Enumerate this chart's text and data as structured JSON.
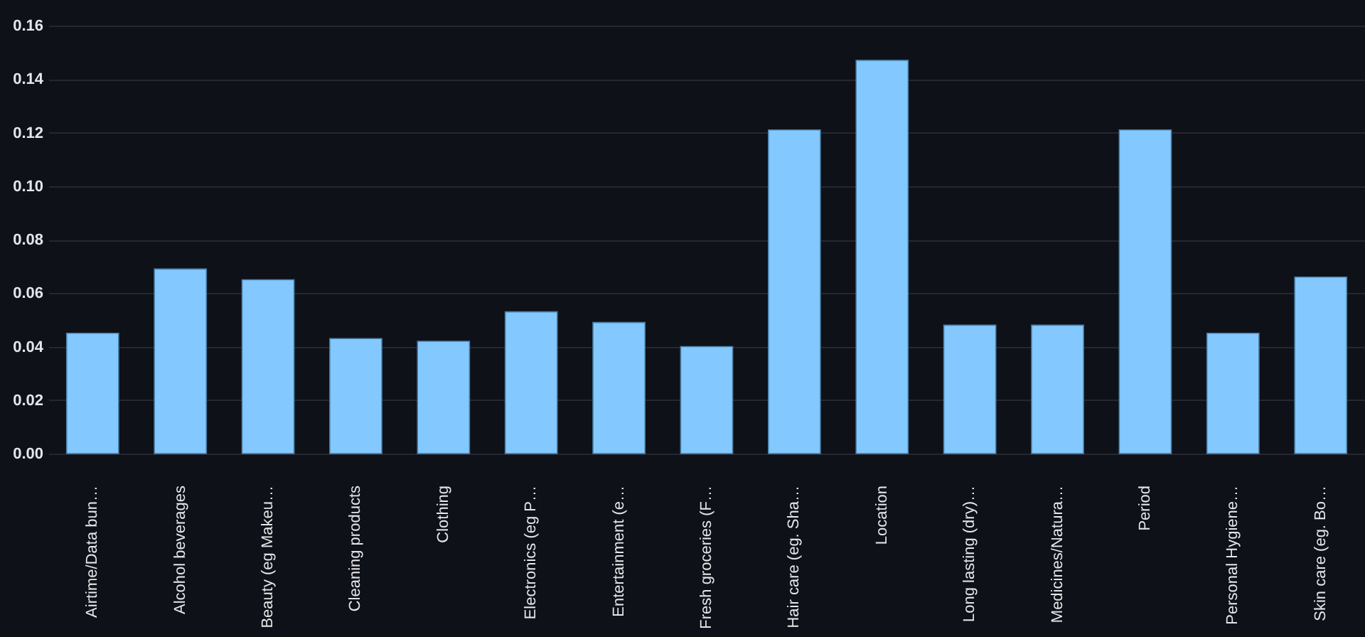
{
  "chart_data": {
    "type": "bar",
    "categories": [
      "Airtime/Data bun…",
      "Alcohol beverages",
      "Beauty (eg Makeu…",
      "Cleaning products",
      "Clothing",
      "Electronics (eg P…",
      "Entertainment (e…",
      "Fresh groceries (F…",
      "Hair care (eg. Sha…",
      "Location",
      "Long lasting (dry)…",
      "Medicines/Natura…",
      "Period",
      "Personal Hygiene…",
      "Skin care (eg. Bo…"
    ],
    "values": [
      0.045,
      0.069,
      0.065,
      0.043,
      0.042,
      0.053,
      0.049,
      0.04,
      0.121,
      0.147,
      0.048,
      0.048,
      0.121,
      0.045,
      0.066
    ],
    "color": "#83c9ff",
    "ylim": [
      0,
      0.16
    ],
    "yticks": [
      {
        "value": 0,
        "label": "0.00"
      },
      0.02,
      0.04,
      0.06,
      0.08,
      {
        "value": 0.1,
        "label": "0.10"
      },
      0.12,
      0.14,
      0.16
    ],
    "grid": "y"
  }
}
